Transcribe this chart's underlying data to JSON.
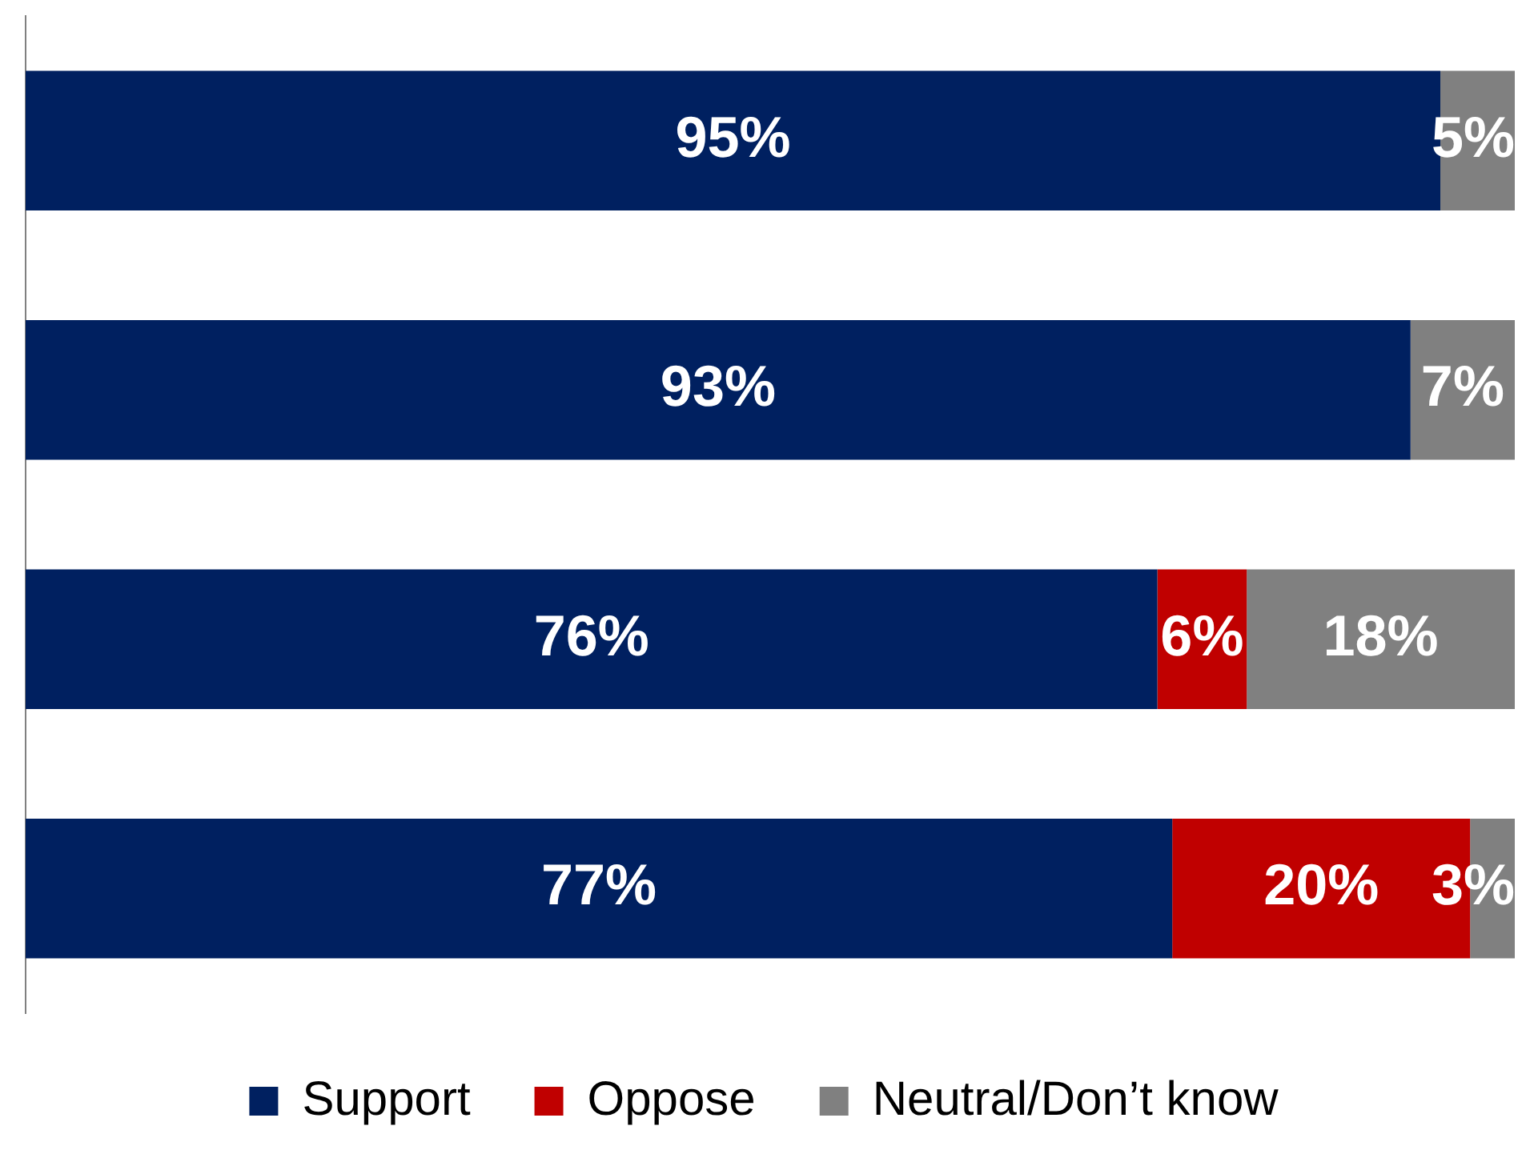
{
  "chart_data": {
    "type": "bar",
    "orientation": "horizontal",
    "stacked": true,
    "categories": [
      null,
      null,
      null,
      null
    ],
    "xlim": [
      0,
      100
    ],
    "tick_labels": false,
    "legend": "bottom",
    "series": [
      {
        "name": "Support",
        "color": "#002060",
        "values": [
          95,
          93,
          76,
          77
        ],
        "value_labels": [
          "95%",
          "93%",
          "76%",
          "77%"
        ]
      },
      {
        "name": "Oppose",
        "color": "#c00000",
        "values": [
          0,
          0,
          6,
          20
        ],
        "value_labels": [
          null,
          null,
          "6%",
          "20%"
        ]
      },
      {
        "name": "Neutral/Don’t know",
        "color": "#808080",
        "values": [
          5,
          7,
          18,
          3
        ],
        "value_labels": [
          "5%",
          "7%",
          "18%",
          "3%"
        ]
      }
    ]
  }
}
